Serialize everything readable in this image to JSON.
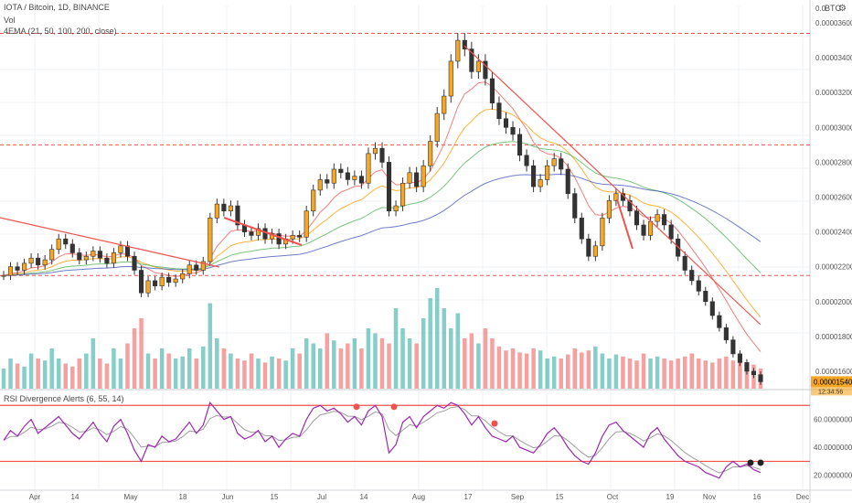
{
  "header": {
    "symbol_line": "IOTA / Bitcoin, 1D, BINANCE",
    "volume_label": "Vol",
    "ema_label": "4EMA (21, 50, 100, 200, close)",
    "rsi_label": "RSI Divergence Alerts (6, 55, 14)",
    "scale_currency": "BTC",
    "gear_symbol": "⚙"
  },
  "colors": {
    "up": "#26a69a",
    "down": "#ef5350",
    "candle_body_up": "#f5a623",
    "candle_body_down": "#333333",
    "ema21": "#ef5350",
    "ema50": "#ff9800",
    "ema100": "#4caf50",
    "ema200": "#3f51b5",
    "rsi": "#9c27b0",
    "rsi_signal": "#9e9e9e",
    "last_price_bg": "#f5a623"
  },
  "chart_data": {
    "type": "candlestick",
    "pair": "IOTA/BTC",
    "timeframe": "1D",
    "exchange": "BINANCE",
    "price_axis_ticks": [
      "0.0",
      "0.00003600",
      "0.00003400",
      "0.00003200",
      "0.00003000",
      "0.00002800",
      "0.00002600",
      "0.00002400",
      "0.00002200",
      "0.00002000",
      "0.00001800",
      "0.00001600"
    ],
    "last_price": "0.00001540",
    "last_price_countdown": "12:34:56",
    "time_axis_ticks": [
      "Apr",
      "14",
      "May",
      "18",
      "Jun",
      "15",
      "Jul",
      "14",
      "Aug",
      "17",
      "Sep",
      "15",
      "Oct",
      "19",
      "Nov",
      "16",
      "Dec"
    ],
    "rsi_axis_ticks": [
      "60.00000000",
      "40.00000000",
      "20.00000000"
    ],
    "horizontal_levels": [
      3.54e-05,
      2.9e-05,
      2.15e-05
    ],
    "rsi_levels": [
      70,
      30
    ],
    "price_path": [
      2.15e-05,
      2.2e-05,
      2.18e-05,
      2.22e-05,
      2.25e-05,
      2.21e-05,
      2.24e-05,
      2.3e-05,
      2.36e-05,
      2.33e-05,
      2.28e-05,
      2.24e-05,
      2.26e-05,
      2.29e-05,
      2.25e-05,
      2.22e-05,
      2.28e-05,
      2.32e-05,
      2.26e-05,
      2.18e-05,
      2.05e-05,
      2.12e-05,
      2.09e-05,
      2.14e-05,
      2.11e-05,
      2.13e-05,
      2.16e-05,
      2.21e-05,
      2.18e-05,
      2.23e-05,
      2.48e-05,
      2.56e-05,
      2.52e-05,
      2.55e-05,
      2.44e-05,
      2.4e-05,
      2.38e-05,
      2.42e-05,
      2.36e-05,
      2.39e-05,
      2.33e-05,
      2.36e-05,
      2.38e-05,
      2.37e-05,
      2.52e-05,
      2.64e-05,
      2.7e-05,
      2.68e-05,
      2.76e-05,
      2.74e-05,
      2.7e-05,
      2.72e-05,
      2.68e-05,
      2.85e-05,
      2.88e-05,
      2.8e-05,
      2.52e-05,
      2.55e-05,
      2.68e-05,
      2.74e-05,
      2.66e-05,
      2.78e-05,
      2.92e-05,
      3.08e-05,
      3.18e-05,
      3.38e-05,
      3.5e-05,
      3.45e-05,
      3.32e-05,
      3.38e-05,
      3.28e-05,
      3.14e-05,
      3.05e-05,
      3e-05,
      2.96e-05,
      2.84e-05,
      2.78e-05,
      2.66e-05,
      2.7e-05,
      2.78e-05,
      2.82e-05,
      2.76e-05,
      2.62e-05,
      2.48e-05,
      2.36e-05,
      2.26e-05,
      2.32e-05,
      2.48e-05,
      2.58e-05,
      2.62e-05,
      2.58e-05,
      2.52e-05,
      2.44e-05,
      2.38e-05,
      2.46e-05,
      2.5e-05,
      2.44e-05,
      2.36e-05,
      2.26e-05,
      2.18e-05,
      2.12e-05,
      2.06e-05,
      2e-05,
      1.92e-05,
      1.85e-05,
      1.78e-05,
      1.7e-05,
      1.65e-05,
      1.6e-05,
      1.58e-05,
      1.54e-05
    ],
    "volume_path": [
      0.2,
      0.3,
      0.25,
      0.22,
      0.35,
      0.3,
      0.28,
      0.4,
      0.3,
      0.25,
      0.22,
      0.3,
      0.35,
      0.5,
      0.3,
      0.25,
      0.4,
      0.3,
      0.45,
      0.6,
      0.7,
      0.35,
      0.3,
      0.4,
      0.35,
      0.3,
      0.32,
      0.4,
      0.3,
      0.42,
      0.85,
      0.5,
      0.4,
      0.35,
      0.3,
      0.28,
      0.35,
      0.3,
      0.26,
      0.32,
      0.3,
      0.28,
      0.4,
      0.35,
      0.5,
      0.45,
      0.4,
      0.55,
      0.48,
      0.4,
      0.45,
      0.5,
      0.4,
      0.6,
      0.55,
      0.5,
      0.45,
      0.8,
      0.6,
      0.5,
      0.45,
      0.7,
      0.9,
      1.0,
      0.8,
      0.6,
      0.75,
      0.5,
      0.55,
      0.45,
      0.6,
      0.5,
      0.42,
      0.38,
      0.4,
      0.36,
      0.35,
      0.4,
      0.38,
      0.3,
      0.32,
      0.3,
      0.34,
      0.4,
      0.36,
      0.38,
      0.42,
      0.35,
      0.3,
      0.34,
      0.32,
      0.3,
      0.28,
      0.35,
      0.3,
      0.32,
      0.3,
      0.28,
      0.3,
      0.32,
      0.35,
      0.3,
      0.28,
      0.26,
      0.3,
      0.32,
      0.28,
      0.26,
      0.25,
      0.24,
      0.2
    ],
    "rsi_path": [
      45,
      52,
      48,
      55,
      60,
      50,
      54,
      58,
      62,
      56,
      50,
      46,
      52,
      58,
      50,
      44,
      55,
      60,
      50,
      38,
      30,
      42,
      40,
      48,
      44,
      46,
      52,
      58,
      50,
      56,
      72,
      66,
      60,
      62,
      50,
      46,
      48,
      52,
      44,
      48,
      40,
      46,
      50,
      48,
      60,
      68,
      70,
      66,
      68,
      64,
      58,
      62,
      56,
      66,
      70,
      62,
      36,
      42,
      58,
      62,
      54,
      62,
      66,
      70,
      68,
      72,
      70,
      64,
      56,
      62,
      54,
      48,
      46,
      44,
      48,
      40,
      38,
      36,
      42,
      50,
      54,
      48,
      40,
      34,
      30,
      28,
      36,
      48,
      56,
      58,
      52,
      48,
      44,
      40,
      50,
      54,
      46,
      40,
      34,
      30,
      28,
      26,
      22,
      20,
      18,
      26,
      30,
      26,
      28,
      24,
      22
    ]
  }
}
